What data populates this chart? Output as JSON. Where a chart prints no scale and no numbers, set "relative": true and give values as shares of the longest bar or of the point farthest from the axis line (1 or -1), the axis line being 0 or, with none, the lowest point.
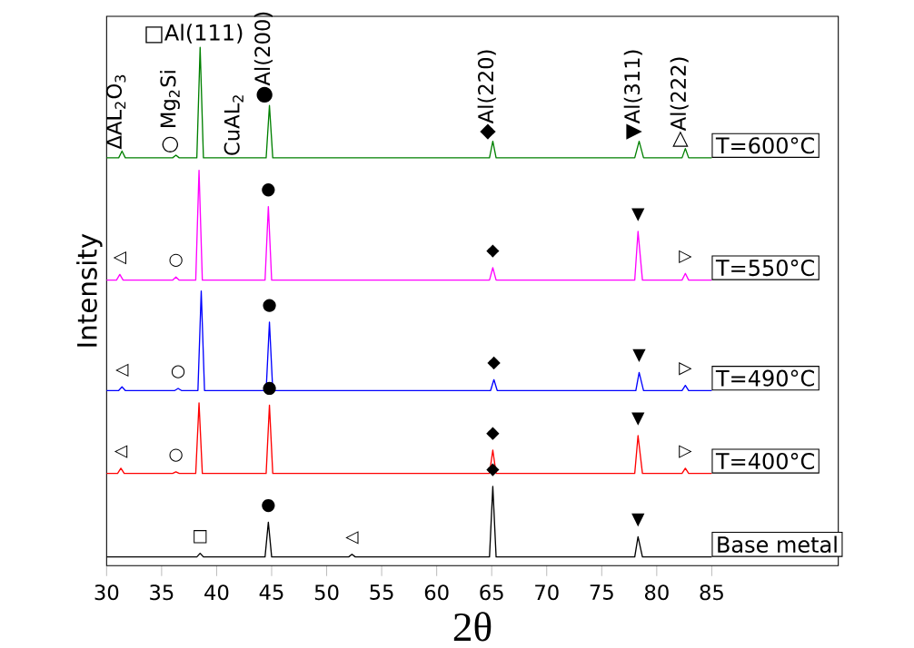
{
  "chart_data": {
    "type": "line",
    "relative": true,
    "xlabel": "2θ",
    "ylabel": "Intensity",
    "xlim": [
      30,
      96.5
    ],
    "xticks": [
      30,
      35,
      40,
      45,
      50,
      55,
      60,
      65,
      70,
      75,
      80,
      85
    ],
    "series": [
      {
        "name": "T=600°C",
        "color": "#008000",
        "x": [
          30,
          31.1,
          31.4,
          31.7,
          36.0,
          36.3,
          36.6,
          38.2,
          38.5,
          38.8,
          44.5,
          44.8,
          45.1,
          64.8,
          65.1,
          65.4,
          78.0,
          78.4,
          78.8,
          82.3,
          82.6,
          82.9,
          85
        ],
        "values": [
          0.787,
          0.787,
          0.8,
          0.787,
          0.787,
          0.792,
          0.787,
          0.787,
          1.0,
          0.787,
          0.787,
          0.888,
          0.787,
          0.787,
          0.819,
          0.787,
          0.787,
          0.819,
          0.787,
          0.787,
          0.805,
          0.787,
          0.787
        ]
      },
      {
        "name": "T=550°C",
        "color": "#ff00ff",
        "x": [
          30,
          30.9,
          31.2,
          31.5,
          36.0,
          36.3,
          36.6,
          38.1,
          38.4,
          38.7,
          44.4,
          44.7,
          45.0,
          64.8,
          65.1,
          65.4,
          78.0,
          78.3,
          78.7,
          82.3,
          82.6,
          82.9,
          85
        ],
        "values": [
          0.551,
          0.551,
          0.562,
          0.551,
          0.551,
          0.557,
          0.551,
          0.551,
          0.763,
          0.551,
          0.551,
          0.693,
          0.551,
          0.551,
          0.575,
          0.551,
          0.551,
          0.645,
          0.551,
          0.551,
          0.564,
          0.551,
          0.551
        ]
      },
      {
        "name": "T=490°C",
        "color": "#0000ff",
        "x": [
          30,
          31.1,
          31.4,
          31.7,
          36.2,
          36.5,
          36.8,
          38.3,
          38.6,
          38.9,
          44.5,
          44.8,
          45.1,
          64.9,
          65.2,
          65.5,
          78.1,
          78.4,
          78.8,
          82.3,
          82.6,
          82.9,
          85
        ],
        "values": [
          0.338,
          0.338,
          0.345,
          0.338,
          0.338,
          0.342,
          0.338,
          0.338,
          0.53,
          0.338,
          0.338,
          0.47,
          0.338,
          0.338,
          0.359,
          0.338,
          0.338,
          0.373,
          0.338,
          0.338,
          0.348,
          0.338,
          0.338
        ]
      },
      {
        "name": "T=400°C",
        "color": "#ff0000",
        "x": [
          30,
          31.0,
          31.3,
          31.6,
          36.0,
          36.3,
          36.6,
          38.1,
          38.4,
          38.7,
          44.5,
          44.8,
          45.1,
          64.8,
          65.1,
          65.4,
          78.0,
          78.3,
          78.7,
          82.3,
          82.6,
          82.9,
          85
        ],
        "values": [
          0.178,
          0.178,
          0.188,
          0.178,
          0.178,
          0.181,
          0.178,
          0.178,
          0.314,
          0.178,
          0.178,
          0.31,
          0.178,
          0.178,
          0.223,
          0.178,
          0.178,
          0.251,
          0.178,
          0.178,
          0.188,
          0.178,
          0.178
        ]
      },
      {
        "name": "Base metal",
        "color": "#000000",
        "x": [
          30,
          38.2,
          38.5,
          38.8,
          44.4,
          44.7,
          45.0,
          52.0,
          52.3,
          52.6,
          64.8,
          65.1,
          65.4,
          78.0,
          78.3,
          78.7,
          85
        ],
        "values": [
          0.017,
          0.017,
          0.024,
          0.017,
          0.017,
          0.084,
          0.017,
          0.017,
          0.022,
          0.017,
          0.017,
          0.153,
          0.017,
          0.017,
          0.056,
          0.017,
          0.017
        ]
      }
    ],
    "annotations": [
      {
        "text": "□Al(111)",
        "x": 38.5,
        "y": 1.0
      },
      {
        "text": "ΔAL$_{2}$O$_{3}$",
        "x": 31.4,
        "y": 0.8
      },
      {
        "text": "○ Mg$_{2}$Si",
        "x": 36.3,
        "y": 0.792
      },
      {
        "text": "CuAL$_{2}$",
        "x": 42.1,
        "y": 0.787
      },
      {
        "text": "●Al(200)",
        "x": 44.8,
        "y": 0.888
      },
      {
        "text": "◆Al(220)",
        "x": 65.1,
        "y": 0.819
      },
      {
        "text": "▼Al(311)",
        "x": 78.4,
        "y": 0.819
      },
      {
        "text": "▷Al(222)",
        "x": 82.6,
        "y": 0.805
      },
      {
        "text": "◁",
        "x": 31.2,
        "y": 0.562
      },
      {
        "text": "○",
        "x": 36.3,
        "y": 0.557
      },
      {
        "text": "●",
        "x": 44.7,
        "y": 0.693
      },
      {
        "text": "◆",
        "x": 65.1,
        "y": 0.575
      },
      {
        "text": "▼",
        "x": 78.3,
        "y": 0.645
      },
      {
        "text": "▷",
        "x": 82.6,
        "y": 0.564
      },
      {
        "text": "◁",
        "x": 31.4,
        "y": 0.345
      },
      {
        "text": "○",
        "x": 36.5,
        "y": 0.342
      },
      {
        "text": "●",
        "x": 44.8,
        "y": 0.47
      },
      {
        "text": "◆",
        "x": 65.2,
        "y": 0.359
      },
      {
        "text": "▼",
        "x": 78.4,
        "y": 0.373
      },
      {
        "text": "▷",
        "x": 82.6,
        "y": 0.348
      },
      {
        "text": "◁",
        "x": 31.3,
        "y": 0.188
      },
      {
        "text": "○",
        "x": 36.3,
        "y": 0.181
      },
      {
        "text": "●",
        "x": 44.8,
        "y": 0.31
      },
      {
        "text": "◆",
        "x": 65.1,
        "y": 0.223
      },
      {
        "text": "▼",
        "x": 78.3,
        "y": 0.251
      },
      {
        "text": "▷",
        "x": 82.6,
        "y": 0.188
      },
      {
        "text": "□",
        "x": 38.5,
        "y": 0.024
      },
      {
        "text": "●",
        "x": 44.7,
        "y": 0.084
      },
      {
        "text": "◁",
        "x": 52.3,
        "y": 0.022
      },
      {
        "text": "◆",
        "x": 65.1,
        "y": 0.153
      },
      {
        "text": "▼",
        "x": 78.3,
        "y": 0.056
      }
    ]
  }
}
